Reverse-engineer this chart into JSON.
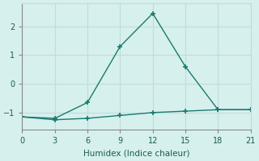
{
  "line1_x": [
    0,
    3,
    6,
    9,
    12,
    15,
    18,
    21
  ],
  "line1_y": [
    -1.15,
    -1.2,
    -0.65,
    1.3,
    2.45,
    0.6,
    -0.9,
    -0.9
  ],
  "line2_x": [
    0,
    3,
    6,
    9,
    12,
    15,
    18,
    21
  ],
  "line2_y": [
    -1.15,
    -1.25,
    -1.2,
    -1.1,
    -1.0,
    -0.95,
    -0.9,
    -0.9
  ],
  "line_color": "#1a7a6e",
  "bg_color": "#d6f0ee",
  "grid_color": "#c0ddd9",
  "xlabel": "Humidex (Indice chaleur)",
  "xlim": [
    0,
    21
  ],
  "ylim": [
    -1.6,
    2.8
  ],
  "xticks": [
    0,
    3,
    6,
    9,
    12,
    15,
    18,
    21
  ],
  "yticks": [
    -1,
    0,
    1,
    2
  ],
  "marker": "+"
}
